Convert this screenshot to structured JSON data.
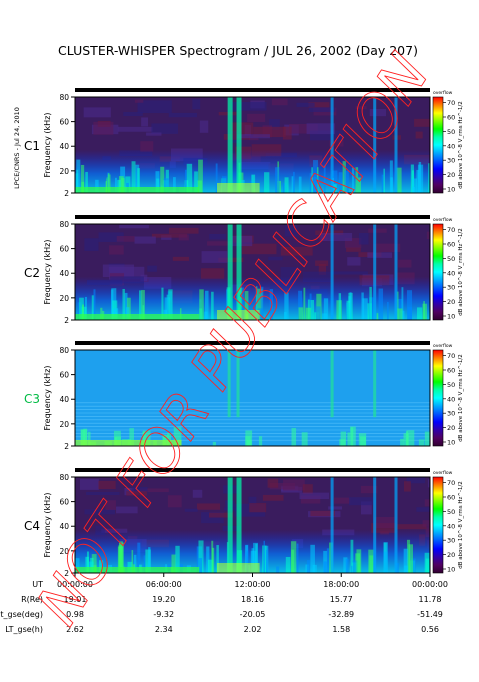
{
  "chart_data": {
    "type": "heatmap",
    "title": "CLUSTER-WHISPER Spectrogram / JUL 26, 2002 (Day 207)",
    "credit": "LPCE/CNRS - Jul 24, 2010",
    "watermark": "NOT FOR PUBLICATION",
    "ylabel": "Frequency (kHz)",
    "yticks": [
      "80",
      "60",
      "40",
      "20",
      "2"
    ],
    "ylim": [
      2,
      80
    ],
    "colorbar": {
      "title": "overflow",
      "label": "dB above 10^-8 V_rms Hz^-1/2",
      "ticks": [
        "70",
        "60",
        "50",
        "40",
        "30",
        "20",
        "10"
      ],
      "range": [
        10,
        70
      ],
      "colors": [
        "#ff0000",
        "#ff7f00",
        "#ffff00",
        "#7fff00",
        "#00ff00",
        "#00ffaa",
        "#00ffff",
        "#00aaff",
        "#0055ff",
        "#0000ff",
        "#3000aa",
        "#500060",
        "#300030"
      ]
    },
    "panels": [
      {
        "name": "C1",
        "label_color": "#000000",
        "bg": "#3a1c5e"
      },
      {
        "name": "C2",
        "label_color": "#000000",
        "bg": "#3a1c5e"
      },
      {
        "name": "C3",
        "label_color": "#00bb44",
        "bg": "#1ea0ee"
      },
      {
        "name": "C4",
        "label_color": "#000000",
        "bg": "#3a1c5e"
      }
    ],
    "x_ticks": [
      "00:00:00",
      "06:00:00",
      "12:00:00",
      "18:00:00",
      "00:00:00"
    ],
    "ephemeris": [
      {
        "label": "UT",
        "values": []
      },
      {
        "label": "R(Re)",
        "values": [
          "19.01",
          "19.20",
          "18.16",
          "15.77",
          "11.78"
        ]
      },
      {
        "label": "Lat_gse(deg)",
        "values": [
          "0.98",
          "-9.32",
          "-20.05",
          "-32.89",
          "-51.49"
        ]
      },
      {
        "label": "LT_gse(h)",
        "values": [
          "2.62",
          "2.34",
          "2.02",
          "1.58",
          "0.56"
        ]
      }
    ]
  }
}
